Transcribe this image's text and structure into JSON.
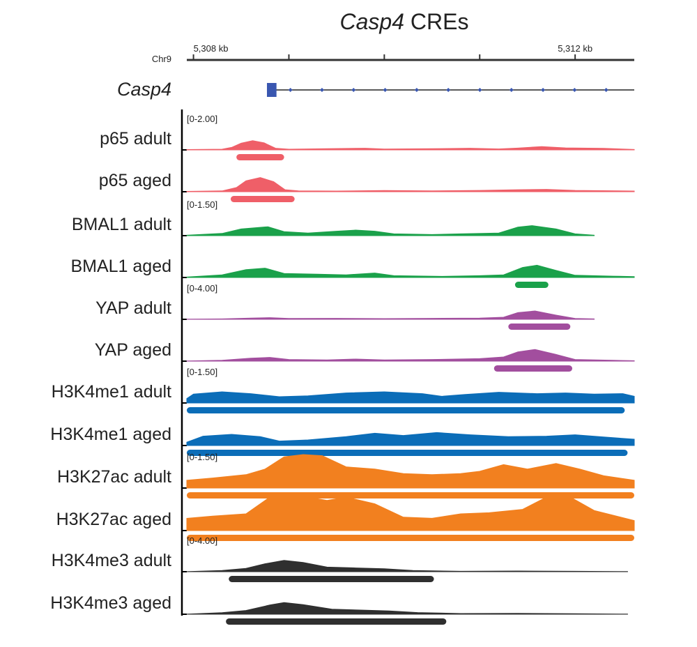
{
  "title_gene": "Casp4",
  "title_suffix": " CREs",
  "chrom": "Chr9",
  "gene_name": "Casp4",
  "colors": {
    "gene": "#3a57b0",
    "axis": "#333333"
  },
  "chart_data": {
    "type": "area",
    "genome_axis": {
      "range_kb": [
        5307.93,
        5312.62
      ],
      "labeled_ticks": [
        {
          "position_kb": 5308,
          "label": "5,308 kb"
        },
        {
          "position_kb": 5312,
          "label": "5,312 kb"
        }
      ],
      "minor_ticks_kb": [
        5309,
        5310,
        5311
      ]
    },
    "gene": {
      "name": "Casp4",
      "first_exon_kb": [
        5308.77,
        5308.87
      ],
      "span_kb": [
        5308.77,
        5312.62
      ],
      "strand": "+"
    },
    "tracks": [
      {
        "name": "p65 adult",
        "color": "#ef5f68",
        "scale_label": "[0-2.00]",
        "max": 2.0,
        "profile": [
          [
            5307.93,
            0.02
          ],
          [
            5308.3,
            0.04
          ],
          [
            5308.4,
            0.15
          ],
          [
            5308.5,
            0.4
          ],
          [
            5308.62,
            0.55
          ],
          [
            5308.74,
            0.42
          ],
          [
            5308.86,
            0.1
          ],
          [
            5309.0,
            0.04
          ],
          [
            5309.4,
            0.07
          ],
          [
            5309.8,
            0.1
          ],
          [
            5310.0,
            0.05
          ],
          [
            5310.5,
            0.07
          ],
          [
            5310.9,
            0.1
          ],
          [
            5311.2,
            0.06
          ],
          [
            5311.4,
            0.11
          ],
          [
            5311.65,
            0.2
          ],
          [
            5311.9,
            0.12
          ],
          [
            5312.3,
            0.09
          ],
          [
            5312.62,
            0.03
          ]
        ],
        "peaks_kb": [
          [
            5308.45,
            5308.95
          ]
        ]
      },
      {
        "name": "p65 aged",
        "color": "#ef5f68",
        "scale_label": "",
        "max": 2.0,
        "profile": [
          [
            5307.93,
            0.02
          ],
          [
            5308.3,
            0.05
          ],
          [
            5308.45,
            0.25
          ],
          [
            5308.55,
            0.65
          ],
          [
            5308.7,
            0.85
          ],
          [
            5308.84,
            0.6
          ],
          [
            5308.96,
            0.12
          ],
          [
            5309.1,
            0.05
          ],
          [
            5309.5,
            0.04
          ],
          [
            5310.0,
            0.07
          ],
          [
            5310.5,
            0.05
          ],
          [
            5311.0,
            0.08
          ],
          [
            5311.4,
            0.12
          ],
          [
            5311.7,
            0.14
          ],
          [
            5312.0,
            0.08
          ],
          [
            5312.62,
            0.04
          ]
        ],
        "peaks_kb": [
          [
            5308.39,
            5309.06
          ]
        ]
      },
      {
        "name": "BMAL1 adult",
        "color": "#1aa14a",
        "scale_label": "[0-1.50]",
        "max": 1.5,
        "profile": [
          [
            5307.93,
            0.02
          ],
          [
            5308.3,
            0.1
          ],
          [
            5308.5,
            0.3
          ],
          [
            5308.78,
            0.4
          ],
          [
            5308.95,
            0.18
          ],
          [
            5309.2,
            0.12
          ],
          [
            5309.5,
            0.2
          ],
          [
            5309.7,
            0.25
          ],
          [
            5309.9,
            0.2
          ],
          [
            5310.1,
            0.08
          ],
          [
            5310.5,
            0.05
          ],
          [
            5310.8,
            0.08
          ],
          [
            5311.2,
            0.12
          ],
          [
            5311.4,
            0.38
          ],
          [
            5311.55,
            0.45
          ],
          [
            5311.8,
            0.3
          ],
          [
            5312.0,
            0.08
          ],
          [
            5312.2,
            0.02
          ]
        ],
        "peaks_kb": []
      },
      {
        "name": "BMAL1 aged",
        "color": "#1aa14a",
        "scale_label": "",
        "max": 1.5,
        "profile": [
          [
            5307.93,
            0.02
          ],
          [
            5308.3,
            0.12
          ],
          [
            5308.55,
            0.35
          ],
          [
            5308.75,
            0.42
          ],
          [
            5308.95,
            0.18
          ],
          [
            5309.3,
            0.15
          ],
          [
            5309.6,
            0.12
          ],
          [
            5309.9,
            0.2
          ],
          [
            5310.1,
            0.08
          ],
          [
            5310.6,
            0.05
          ],
          [
            5311.0,
            0.08
          ],
          [
            5311.25,
            0.12
          ],
          [
            5311.45,
            0.45
          ],
          [
            5311.6,
            0.55
          ],
          [
            5311.8,
            0.32
          ],
          [
            5312.0,
            0.1
          ],
          [
            5312.4,
            0.06
          ],
          [
            5312.62,
            0.04
          ]
        ],
        "peaks_kb": [
          [
            5311.37,
            5311.72
          ]
        ]
      },
      {
        "name": "YAP adult",
        "color": "#a24e9e",
        "scale_label": "[0-4.00]",
        "max": 4.0,
        "profile": [
          [
            5307.93,
            0.02
          ],
          [
            5308.3,
            0.05
          ],
          [
            5308.6,
            0.15
          ],
          [
            5308.8,
            0.2
          ],
          [
            5309.0,
            0.1
          ],
          [
            5309.5,
            0.12
          ],
          [
            5310.0,
            0.08
          ],
          [
            5310.5,
            0.12
          ],
          [
            5311.0,
            0.15
          ],
          [
            5311.25,
            0.25
          ],
          [
            5311.4,
            0.8
          ],
          [
            5311.58,
            1.0
          ],
          [
            5311.8,
            0.5
          ],
          [
            5312.0,
            0.1
          ],
          [
            5312.2,
            0.05
          ]
        ],
        "peaks_kb": [
          [
            5311.3,
            5311.95
          ]
        ]
      },
      {
        "name": "YAP aged",
        "color": "#a24e9e",
        "scale_label": "",
        "max": 4.0,
        "profile": [
          [
            5307.93,
            0.02
          ],
          [
            5308.3,
            0.1
          ],
          [
            5308.6,
            0.35
          ],
          [
            5308.8,
            0.45
          ],
          [
            5309.0,
            0.2
          ],
          [
            5309.4,
            0.15
          ],
          [
            5309.7,
            0.25
          ],
          [
            5310.0,
            0.15
          ],
          [
            5310.5,
            0.2
          ],
          [
            5311.0,
            0.3
          ],
          [
            5311.25,
            0.5
          ],
          [
            5311.4,
            1.1
          ],
          [
            5311.58,
            1.4
          ],
          [
            5311.8,
            0.8
          ],
          [
            5312.0,
            0.2
          ],
          [
            5312.4,
            0.1
          ],
          [
            5312.62,
            0.05
          ]
        ],
        "peaks_kb": [
          [
            5311.15,
            5311.97
          ]
        ]
      },
      {
        "name": "H3K4me1 adult",
        "color": "#0b6db8",
        "scale_label": "[0-1.50]",
        "max": 1.5,
        "profile": [
          [
            5307.93,
            0.2
          ],
          [
            5308.0,
            0.4
          ],
          [
            5308.3,
            0.5
          ],
          [
            5308.6,
            0.42
          ],
          [
            5308.9,
            0.28
          ],
          [
            5309.2,
            0.32
          ],
          [
            5309.6,
            0.45
          ],
          [
            5310.0,
            0.5
          ],
          [
            5310.4,
            0.42
          ],
          [
            5310.6,
            0.3
          ],
          [
            5310.85,
            0.38
          ],
          [
            5311.2,
            0.48
          ],
          [
            5311.6,
            0.42
          ],
          [
            5311.9,
            0.45
          ],
          [
            5312.2,
            0.4
          ],
          [
            5312.5,
            0.42
          ],
          [
            5312.62,
            0.3
          ]
        ],
        "peaks_kb": [
          [
            5307.93,
            5312.52
          ]
        ]
      },
      {
        "name": "H3K4me1 aged",
        "color": "#0b6db8",
        "scale_label": "",
        "max": 1.5,
        "profile": [
          [
            5307.93,
            0.15
          ],
          [
            5308.1,
            0.42
          ],
          [
            5308.4,
            0.5
          ],
          [
            5308.7,
            0.4
          ],
          [
            5308.9,
            0.2
          ],
          [
            5309.2,
            0.25
          ],
          [
            5309.6,
            0.4
          ],
          [
            5309.9,
            0.55
          ],
          [
            5310.2,
            0.45
          ],
          [
            5310.55,
            0.58
          ],
          [
            5310.9,
            0.48
          ],
          [
            5311.3,
            0.4
          ],
          [
            5311.7,
            0.42
          ],
          [
            5312.0,
            0.48
          ],
          [
            5312.3,
            0.38
          ],
          [
            5312.62,
            0.28
          ]
        ],
        "peaks_kb": [
          [
            5307.93,
            5312.55
          ]
        ]
      },
      {
        "name": "H3K27ac adult",
        "color": "#f2801f",
        "scale_label": "[0-1.50]",
        "max": 1.5,
        "profile": [
          [
            5307.93,
            0.35
          ],
          [
            5308.2,
            0.45
          ],
          [
            5308.55,
            0.6
          ],
          [
            5308.75,
            0.85
          ],
          [
            5308.95,
            1.4
          ],
          [
            5309.15,
            1.55
          ],
          [
            5309.35,
            1.45
          ],
          [
            5309.6,
            0.95
          ],
          [
            5309.9,
            0.85
          ],
          [
            5310.2,
            0.65
          ],
          [
            5310.5,
            0.6
          ],
          [
            5310.8,
            0.65
          ],
          [
            5311.0,
            0.75
          ],
          [
            5311.25,
            1.05
          ],
          [
            5311.5,
            0.85
          ],
          [
            5311.8,
            1.1
          ],
          [
            5312.05,
            0.85
          ],
          [
            5312.3,
            0.55
          ],
          [
            5312.62,
            0.35
          ]
        ],
        "peaks_kb": [
          [
            5307.93,
            5312.62
          ]
        ]
      },
      {
        "name": "H3K27ac aged",
        "color": "#f2801f",
        "scale_label": "",
        "max": 1.5,
        "profile": [
          [
            5307.93,
            0.55
          ],
          [
            5308.2,
            0.65
          ],
          [
            5308.55,
            0.75
          ],
          [
            5308.8,
            1.5
          ],
          [
            5309.0,
            1.5
          ],
          [
            5309.2,
            1.5
          ],
          [
            5309.4,
            1.35
          ],
          [
            5309.6,
            1.5
          ],
          [
            5309.9,
            1.2
          ],
          [
            5310.2,
            0.6
          ],
          [
            5310.5,
            0.55
          ],
          [
            5310.8,
            0.75
          ],
          [
            5311.1,
            0.8
          ],
          [
            5311.45,
            0.95
          ],
          [
            5311.7,
            1.5
          ],
          [
            5311.95,
            1.5
          ],
          [
            5312.2,
            0.9
          ],
          [
            5312.62,
            0.45
          ]
        ],
        "peaks_kb": [
          [
            5307.93,
            5312.62
          ]
        ]
      },
      {
        "name": "H3K4me3 adult",
        "color": "#2f2f2f",
        "scale_label": "[0-4.00]",
        "max": 4.0,
        "profile": [
          [
            5307.93,
            0.02
          ],
          [
            5308.3,
            0.15
          ],
          [
            5308.55,
            0.4
          ],
          [
            5308.75,
            0.95
          ],
          [
            5308.95,
            1.35
          ],
          [
            5309.15,
            1.1
          ],
          [
            5309.4,
            0.55
          ],
          [
            5309.7,
            0.45
          ],
          [
            5310.0,
            0.35
          ],
          [
            5310.3,
            0.15
          ],
          [
            5310.8,
            0.05
          ],
          [
            5311.4,
            0.08
          ],
          [
            5312.0,
            0.05
          ],
          [
            5312.55,
            0.02
          ]
        ],
        "peaks_kb": [
          [
            5308.37,
            5310.52
          ]
        ]
      },
      {
        "name": "H3K4me3 aged",
        "color": "#2f2f2f",
        "scale_label": "",
        "max": 4.0,
        "profile": [
          [
            5307.93,
            0.02
          ],
          [
            5308.3,
            0.18
          ],
          [
            5308.55,
            0.45
          ],
          [
            5308.8,
            1.1
          ],
          [
            5308.95,
            1.4
          ],
          [
            5309.15,
            1.15
          ],
          [
            5309.45,
            0.6
          ],
          [
            5309.75,
            0.5
          ],
          [
            5310.05,
            0.4
          ],
          [
            5310.35,
            0.2
          ],
          [
            5310.8,
            0.08
          ],
          [
            5311.4,
            0.1
          ],
          [
            5312.0,
            0.06
          ],
          [
            5312.55,
            0.02
          ]
        ],
        "peaks_kb": [
          [
            5308.34,
            5310.65
          ]
        ]
      }
    ]
  }
}
